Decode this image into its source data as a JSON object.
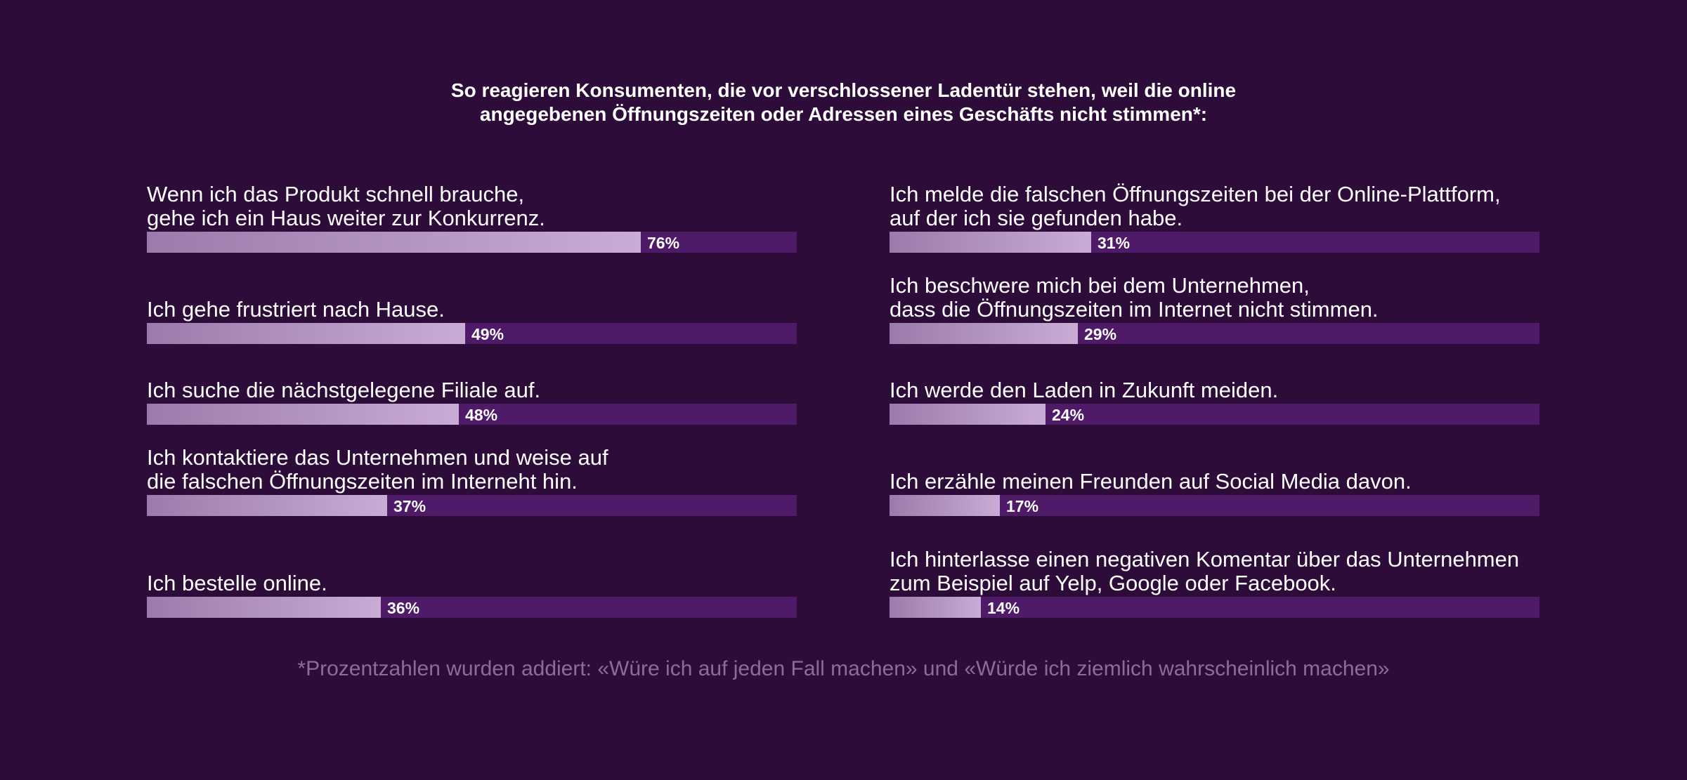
{
  "chart_data": {
    "type": "bar",
    "title": [
      "So reagieren Konsumenten, die vor verschlossener Ladentür stehen, weil die online",
      "angegebenen Öffnungszeiten oder Adressen eines Geschäfts nicht stimmen*:"
    ],
    "ylim": [
      0,
      100
    ],
    "unit": "%",
    "columns": [
      {
        "items": [
          {
            "label_lines": [
              "Wenn ich das Produkt schnell brauche,",
              "gehe ich ein Haus weiter zur Konkurrenz."
            ],
            "value": 76,
            "value_label": "76%"
          },
          {
            "label_lines": [
              "Ich gehe frustriert nach Hause."
            ],
            "value": 49,
            "value_label": "49%"
          },
          {
            "label_lines": [
              "Ich suche die nächstgelegene Filiale auf."
            ],
            "value": 48,
            "value_label": "48%"
          },
          {
            "label_lines": [
              "Ich kontaktiere das Unternehmen und weise auf",
              "die falschen Öffnungszeiten im Interneht hin."
            ],
            "value": 37,
            "value_label": "37%"
          },
          {
            "label_lines": [
              "Ich bestelle online."
            ],
            "value": 36,
            "value_label": "36%"
          }
        ]
      },
      {
        "items": [
          {
            "label_lines": [
              "Ich melde die falschen Öffnungszeiten bei der Online-Plattform,",
              "auf der ich sie gefunden habe."
            ],
            "value": 31,
            "value_label": "31%"
          },
          {
            "label_lines": [
              "Ich beschwere mich bei dem Unternehmen,",
              "dass die Öffnungszeiten im Internet nicht stimmen."
            ],
            "value": 29,
            "value_label": "29%"
          },
          {
            "label_lines": [
              "Ich werde den Laden in Zukunft meiden."
            ],
            "value": 24,
            "value_label": "24%"
          },
          {
            "label_lines": [
              "Ich erzähle meinen Freunden auf Social Media davon."
            ],
            "value": 17,
            "value_label": "17%"
          },
          {
            "label_lines": [
              "Ich hinterlasse einen negativen Komentar über das Unternehmen",
              "zum Beispiel auf Yelp, Google oder Facebook."
            ],
            "value": 14,
            "value_label": "14%"
          }
        ]
      }
    ],
    "footnote": "*Prozentzahlen wurden addiert: «Würe ich auf jeden Fall machen» und «Würde ich ziemlich wahrscheinlich machen»"
  },
  "colors": {
    "background": "#2d0c3a",
    "track": "#4f1a68",
    "fill_start": "#9b7bab",
    "fill_end": "#c9acd6",
    "footnote": "#8a6d98"
  }
}
